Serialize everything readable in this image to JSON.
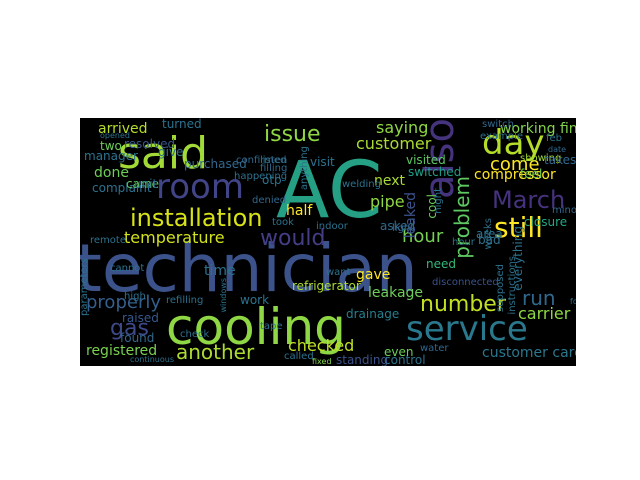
{
  "palette": {
    "background": "#ffffff",
    "cloud_bg": "#000000",
    "colors": [
      "#440154",
      "#482878",
      "#3b528b",
      "#31688e",
      "#26828e",
      "#1f9e89",
      "#35b779",
      "#6ece58",
      "#b5de2b",
      "#fde725"
    ]
  },
  "cloud": {
    "words": [
      {
        "text": "technician",
        "color": "#3b528b"
      },
      {
        "text": "AC",
        "color": "#26a085"
      },
      {
        "text": "cooling",
        "color": "#8fd744"
      },
      {
        "text": "said",
        "color": "#a2da37"
      },
      {
        "text": "room",
        "color": "#414487"
      },
      {
        "text": "also",
        "color": "#46337e"
      },
      {
        "text": "service",
        "color": "#2a788e"
      },
      {
        "text": "day",
        "color": "#b5de2b"
      },
      {
        "text": "installation",
        "color": "#d8e219"
      },
      {
        "text": "March",
        "color": "#46327e"
      },
      {
        "text": "still",
        "color": "#fde725"
      },
      {
        "text": "would",
        "color": "#433e85"
      },
      {
        "text": "issue",
        "color": "#8fd744"
      },
      {
        "text": "problem",
        "color": "#5ec962"
      },
      {
        "text": "number",
        "color": "#c2df23"
      },
      {
        "text": "temperature",
        "color": "#d2e21b"
      },
      {
        "text": "another",
        "color": "#addc30"
      },
      {
        "text": "gas",
        "color": "#3e4989"
      },
      {
        "text": "properly",
        "color": "#355f8d"
      },
      {
        "text": "hour",
        "color": "#75d054"
      },
      {
        "text": "run",
        "color": "#31688e"
      },
      {
        "text": "come",
        "color": "#fde725"
      },
      {
        "text": "carrier",
        "color": "#8fd744"
      },
      {
        "text": "customer care",
        "color": "#2a788e"
      },
      {
        "text": "checked",
        "color": "#c0df25"
      },
      {
        "text": "registered",
        "color": "#7ad151"
      },
      {
        "text": "saying",
        "color": "#8fd744"
      },
      {
        "text": "customer",
        "color": "#a8db34"
      },
      {
        "text": "compressor",
        "color": "#fde725"
      },
      {
        "text": "next",
        "color": "#a8db34"
      },
      {
        "text": "pipe",
        "color": "#8fd744"
      },
      {
        "text": "done",
        "color": "#6ece58"
      },
      {
        "text": "arrived",
        "color": "#b5de2b"
      },
      {
        "text": "working fine",
        "color": "#84d44b"
      },
      {
        "text": "showing",
        "color": "#a2da37"
      },
      {
        "text": "time",
        "color": "#2c728e"
      },
      {
        "text": "gave",
        "color": "#fde725"
      },
      {
        "text": "leakage",
        "color": "#6ece58"
      },
      {
        "text": "drainage",
        "color": "#277f8e"
      },
      {
        "text": "refrigerator",
        "color": "#addc30"
      },
      {
        "text": "standing",
        "color": "#3b528b"
      },
      {
        "text": "visited",
        "color": "#5ec962"
      },
      {
        "text": "switched",
        "color": "#1f9e89"
      },
      {
        "text": "complaint",
        "color": "#2c728e"
      },
      {
        "text": "closure",
        "color": "#22a884"
      },
      {
        "text": "leaked",
        "color": "#3b528b"
      },
      {
        "text": "asked",
        "color": "#31688e"
      },
      {
        "text": "raised",
        "color": "#38588c"
      },
      {
        "text": "remote",
        "color": "#2c728e"
      },
      {
        "text": "came",
        "color": "#5ec962"
      },
      {
        "text": "unit",
        "color": "#31688e"
      },
      {
        "text": "manager",
        "color": "#2c728e"
      },
      {
        "text": "resolved",
        "color": "#38588c"
      },
      {
        "text": "turned",
        "color": "#2c728e"
      },
      {
        "text": "purchased",
        "color": "#31688e"
      },
      {
        "text": "feel",
        "color": "#7ad151"
      },
      {
        "text": "takes",
        "color": "#31688e"
      },
      {
        "text": "feb",
        "color": "#2c728e"
      },
      {
        "text": "date",
        "color": "#31688e"
      },
      {
        "text": "minor",
        "color": "#31688e"
      },
      {
        "text": "control",
        "color": "#2c728e"
      },
      {
        "text": "called",
        "color": "#2c728e"
      },
      {
        "text": "fixed",
        "color": "#84d44b"
      },
      {
        "text": "water",
        "color": "#31688e"
      },
      {
        "text": "bad",
        "color": "#2c728e"
      },
      {
        "text": "cool",
        "color": "#6ece58"
      },
      {
        "text": "work",
        "color": "#2c728e"
      },
      {
        "text": "found",
        "color": "#31688e"
      },
      {
        "text": "disconnected",
        "color": "#3b528b"
      },
      {
        "text": "need",
        "color": "#35b779"
      },
      {
        "text": "even",
        "color": "#6ece58"
      },
      {
        "text": "listen",
        "color": "#2c728e"
      },
      {
        "text": "visit",
        "color": "#2c728e"
      },
      {
        "text": "filling",
        "color": "#31688e"
      },
      {
        "text": "happening",
        "color": "#2c728e"
      },
      {
        "text": "confirmed",
        "color": "#31688e"
      },
      {
        "text": "switch",
        "color": "#31688e"
      },
      {
        "text": "example",
        "color": "#2c728e"
      },
      {
        "text": "supposed",
        "color": "#2c728e"
      },
      {
        "text": "instructions",
        "color": "#2c728e"
      },
      {
        "text": "everything",
        "color": "#2c728e"
      },
      {
        "text": "weeks",
        "color": "#2c728e"
      },
      {
        "text": "half",
        "color": "#fde725"
      },
      {
        "text": "indoor",
        "color": "#2c728e"
      },
      {
        "text": "welding",
        "color": "#2c728e"
      },
      {
        "text": "denied",
        "color": "#31688e"
      },
      {
        "text": "area",
        "color": "#2c728e"
      },
      {
        "text": "cannot",
        "color": "#2c728e"
      },
      {
        "text": "high",
        "color": "#2c728e"
      },
      {
        "text": "continuous",
        "color": "#2c728e"
      },
      {
        "text": "two",
        "color": "#6ece58"
      },
      {
        "text": "windows",
        "color": "#2c728e"
      },
      {
        "text": "light",
        "color": "#31688e"
      },
      {
        "text": "parameters",
        "color": "#2c728e"
      },
      {
        "text": "forced",
        "color": "#2c728e"
      },
      {
        "text": "check",
        "color": "#2c728e"
      },
      {
        "text": "give",
        "color": "#2c728e"
      },
      {
        "text": "tape",
        "color": "#2c728e"
      },
      {
        "text": "opened",
        "color": "#2c728e"
      },
      {
        "text": "otp",
        "color": "#2c728e"
      },
      {
        "text": "anything",
        "color": "#2c728e"
      },
      {
        "text": "want",
        "color": "#2c728e"
      },
      {
        "text": "took",
        "color": "#2c728e"
      },
      {
        "text": "night",
        "color": "#2c728e"
      },
      {
        "text": "hour",
        "color": "#2c728e"
      },
      {
        "text": "refilling",
        "color": "#2c728e"
      }
    ]
  }
}
